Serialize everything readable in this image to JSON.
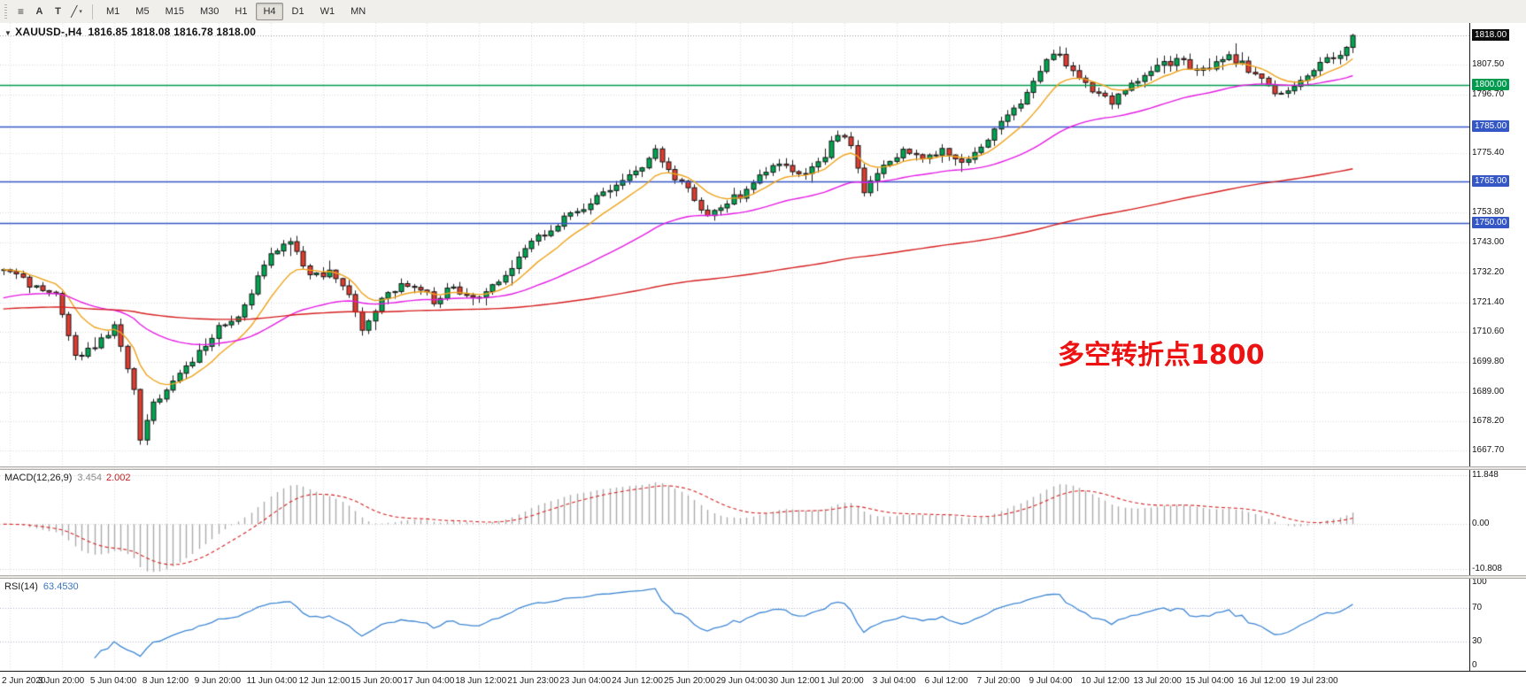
{
  "toolbar": {
    "tools": [
      {
        "name": "window-layout",
        "glyph": "≡"
      },
      {
        "name": "cursor",
        "glyph": "A"
      },
      {
        "name": "text",
        "glyph": "T"
      },
      {
        "name": "trendline",
        "glyph": "╱"
      }
    ],
    "dropdown_caret": "▾",
    "timeframes": [
      "M1",
      "M5",
      "M15",
      "M30",
      "H1",
      "H4",
      "D1",
      "W1",
      "MN"
    ],
    "active_timeframe": "H4"
  },
  "chart": {
    "collapse_icon": "▼",
    "title": "XAUUSD-,H4",
    "ohlc": "1816.85 1818.08 1816.78 1818.00",
    "annotation": {
      "text": "多空转折点1800",
      "color": "#ed1212"
    },
    "current_price": 1818.0,
    "price_range": {
      "top": 1822.5,
      "bottom": 1662.0
    },
    "price_axis": [
      {
        "label": "1818.00",
        "value": 1818.0,
        "type": "current"
      },
      {
        "label": "1807.50",
        "value": 1807.5,
        "type": "grid"
      },
      {
        "label": "1800.00",
        "value": 1800.0,
        "type": "level",
        "color": "#009a4e"
      },
      {
        "label": "1796.70",
        "value": 1796.7,
        "type": "grid"
      },
      {
        "label": "1785.00",
        "value": 1785.0,
        "type": "level",
        "color": "#3457c5"
      },
      {
        "label": "1775.40",
        "value": 1775.4,
        "type": "grid"
      },
      {
        "label": "1765.00",
        "value": 1765.0,
        "type": "level",
        "color": "#3457c5"
      },
      {
        "label": "1753.80",
        "value": 1753.8,
        "type": "grid"
      },
      {
        "label": "1750.00",
        "value": 1750.0,
        "type": "level",
        "color": "#3457c5"
      },
      {
        "label": "1743.00",
        "value": 1743.0,
        "type": "grid"
      },
      {
        "label": "1732.20",
        "value": 1732.2,
        "type": "grid"
      },
      {
        "label": "1721.40",
        "value": 1721.4,
        "type": "grid"
      },
      {
        "label": "1710.60",
        "value": 1710.6,
        "type": "grid"
      },
      {
        "label": "1699.80",
        "value": 1699.8,
        "type": "grid"
      },
      {
        "label": "1689.00",
        "value": 1689.0,
        "type": "grid"
      },
      {
        "label": "1678.20",
        "value": 1678.2,
        "type": "grid"
      },
      {
        "label": "1667.70",
        "value": 1667.7,
        "type": "grid"
      }
    ],
    "levels": [
      {
        "value": 1800.0,
        "color": "#009a4e"
      },
      {
        "value": 1785.0,
        "color": "#3457c5"
      },
      {
        "value": 1765.0,
        "color": "#3457c5"
      },
      {
        "value": 1750.0,
        "color": "#3457c5"
      }
    ]
  },
  "macd": {
    "label": "MACD(12,26,9)",
    "value_main": "3.454",
    "value_signal": "2.002",
    "axis": [
      {
        "label": "11.848",
        "value": 11.848
      },
      {
        "label": "0.00",
        "value": 0
      },
      {
        "label": "-10.808",
        "value": -10.808
      }
    ],
    "params": {
      "fast": 12,
      "slow": 26,
      "signal": 9
    }
  },
  "rsi": {
    "label": "RSI(14)",
    "value": "63.4530",
    "period": 14,
    "levels": [
      70,
      30
    ],
    "axis": [
      {
        "label": "100",
        "value": 100
      },
      {
        "label": "70",
        "value": 70
      },
      {
        "label": "30",
        "value": 30
      },
      {
        "label": "0",
        "value": 0
      }
    ]
  },
  "time_axis": [
    "2 Jun 2020",
    "3 Jun 20:00",
    "5 Jun 04:00",
    "8 Jun 12:00",
    "9 Jun 20:00",
    "11 Jun 04:00",
    "12 Jun 12:00",
    "15 Jun 20:00",
    "17 Jun 04:00",
    "18 Jun 12:00",
    "21 Jun 23:00",
    "23 Jun 04:00",
    "24 Jun 12:00",
    "25 Jun 20:00",
    "29 Jun 04:00",
    "30 Jun 12:00",
    "1 Jul 20:00",
    "3 Jul 04:00",
    "6 Jul 12:00",
    "7 Jul 20:00",
    "9 Jul 04:00",
    "10 Jul 12:00",
    "13 Jul 20:00",
    "15 Jul 04:00",
    "16 Jul 12:00",
    "19 Jul 23:00"
  ],
  "chart_data": {
    "type": "candlestick",
    "symbol": "XAUUSD-",
    "timeframe": "H4",
    "candle_count": 208,
    "last_close": 1818.0,
    "price_anchors": [
      [
        0,
        1733
      ],
      [
        4,
        1728
      ],
      [
        8,
        1725
      ],
      [
        11,
        1701
      ],
      [
        14,
        1706
      ],
      [
        17,
        1713
      ],
      [
        20,
        1691
      ],
      [
        21,
        1672
      ],
      [
        23,
        1684
      ],
      [
        26,
        1693
      ],
      [
        29,
        1701
      ],
      [
        33,
        1712
      ],
      [
        36,
        1717
      ],
      [
        39,
        1730
      ],
      [
        41,
        1738
      ],
      [
        44,
        1743
      ],
      [
        47,
        1731
      ],
      [
        50,
        1732
      ],
      [
        53,
        1724
      ],
      [
        55,
        1711
      ],
      [
        57,
        1719
      ],
      [
        59,
        1726
      ],
      [
        63,
        1728
      ],
      [
        66,
        1722
      ],
      [
        69,
        1727
      ],
      [
        72,
        1722
      ],
      [
        75,
        1727
      ],
      [
        78,
        1734
      ],
      [
        81,
        1744
      ],
      [
        84,
        1748
      ],
      [
        87,
        1753
      ],
      [
        90,
        1757
      ],
      [
        93,
        1763
      ],
      [
        96,
        1768
      ],
      [
        99,
        1773
      ],
      [
        100,
        1778
      ],
      [
        102,
        1769
      ],
      [
        105,
        1762
      ],
      [
        108,
        1752
      ],
      [
        111,
        1758
      ],
      [
        114,
        1761
      ],
      [
        117,
        1769
      ],
      [
        120,
        1771
      ],
      [
        123,
        1767
      ],
      [
        126,
        1775
      ],
      [
        128,
        1783
      ],
      [
        130,
        1777
      ],
      [
        132,
        1762
      ],
      [
        135,
        1771
      ],
      [
        138,
        1776
      ],
      [
        141,
        1773
      ],
      [
        144,
        1777
      ],
      [
        147,
        1773
      ],
      [
        150,
        1777
      ],
      [
        153,
        1788
      ],
      [
        156,
        1794
      ],
      [
        159,
        1805
      ],
      [
        161,
        1812
      ],
      [
        164,
        1806
      ],
      [
        167,
        1798
      ],
      [
        170,
        1794
      ],
      [
        173,
        1800
      ],
      [
        176,
        1806
      ],
      [
        180,
        1809
      ],
      [
        184,
        1805
      ],
      [
        188,
        1811
      ],
      [
        192,
        1804
      ],
      [
        196,
        1796
      ],
      [
        199,
        1801
      ],
      [
        202,
        1807
      ],
      [
        205,
        1812
      ],
      [
        207,
        1817
      ]
    ],
    "moving_averages": [
      {
        "name": "fast",
        "period": 10,
        "color": "#efa31c",
        "init": null
      },
      {
        "name": "mid",
        "period": 40,
        "color": "#e41ce4",
        "init": 1723
      },
      {
        "name": "slow",
        "period": 200,
        "color": "#d61e1e",
        "init": 1719
      }
    ],
    "colors": {
      "up": "#00a651",
      "down": "#e03c30",
      "wick": "#1c1c1c",
      "grid": "#d9d9d9"
    }
  }
}
